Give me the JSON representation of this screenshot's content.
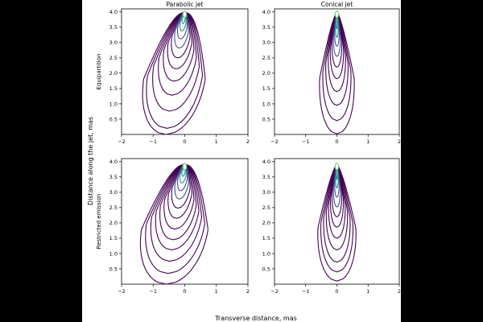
{
  "chart_data": {
    "type": "contour",
    "ylabel": "Distance along the jet, mas",
    "xlabel": "Transverse distance, mas",
    "column_titles": [
      "Parabolic jet",
      "Conical jet"
    ],
    "row_labels": [
      "Equipartition",
      "Restricted emission"
    ],
    "xlim": [
      -2,
      2
    ],
    "ylim": [
      0,
      4.1
    ],
    "xticks": [
      "−2",
      "−1",
      "0",
      "1",
      "2"
    ],
    "yticks": [
      "0.5",
      "1.0",
      "1.5",
      "2.0",
      "2.5",
      "3.0",
      "3.5",
      "4.0"
    ],
    "colormap": [
      "#440154",
      "#3b528b",
      "#21918c",
      "#5ec962"
    ],
    "panels": [
      {
        "title": "Parabolic jet",
        "ylabel": "Equipartition",
        "geometry": "parabolic",
        "tilt": -0.27,
        "apex": [
          0.0,
          4.0
        ],
        "widths_at_base": [
          0.12,
          0.22,
          0.32,
          0.42,
          0.52,
          0.62,
          0.72,
          0.82,
          0.92,
          1.02,
          1.12,
          1.22
        ],
        "bottoms": [
          3.82,
          3.62,
          3.38,
          3.12,
          2.82,
          2.5,
          2.14,
          1.74,
          1.28,
          0.76,
          0.2,
          0.0
        ]
      },
      {
        "title": "Conical jet",
        "ylabel": "",
        "geometry": "conical",
        "tilt": 0.0,
        "apex": [
          0.0,
          4.0
        ],
        "widths_at_base": [
          0.06,
          0.12,
          0.18,
          0.24,
          0.3,
          0.36,
          0.42,
          0.48,
          0.55,
          0.62,
          0.7
        ],
        "bottoms": [
          3.72,
          3.45,
          3.17,
          2.88,
          2.55,
          2.2,
          1.82,
          1.4,
          0.95,
          0.45,
          0.02
        ]
      },
      {
        "title": "",
        "ylabel": "Restricted emission",
        "geometry": "parabolic",
        "tilt": -0.27,
        "apex": [
          0.0,
          3.92
        ],
        "widths_at_base": [
          0.12,
          0.22,
          0.32,
          0.42,
          0.52,
          0.62,
          0.72,
          0.82,
          0.92,
          1.02,
          1.12,
          1.22,
          1.32
        ],
        "bottoms": [
          3.72,
          3.52,
          3.3,
          3.05,
          2.78,
          2.48,
          2.15,
          1.8,
          1.45,
          1.12,
          0.75,
          0.35,
          0.0
        ]
      },
      {
        "title": "",
        "ylabel": "",
        "geometry": "conical",
        "tilt": 0.0,
        "apex": [
          0.0,
          3.92
        ],
        "widths_at_base": [
          0.06,
          0.12,
          0.18,
          0.24,
          0.3,
          0.36,
          0.42,
          0.48,
          0.55,
          0.62,
          0.7,
          0.78
        ],
        "bottoms": [
          3.68,
          3.42,
          3.14,
          2.84,
          2.52,
          2.2,
          1.86,
          1.5,
          1.12,
          0.72,
          0.4,
          0.1
        ]
      }
    ]
  }
}
